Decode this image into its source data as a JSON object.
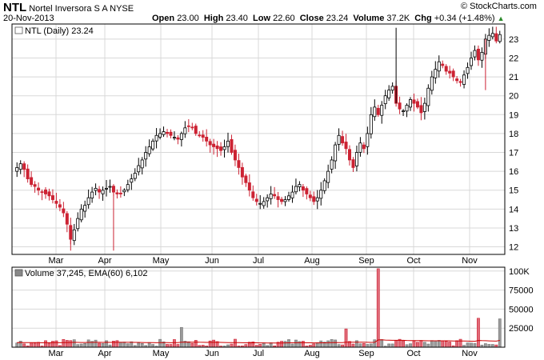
{
  "header": {
    "symbol": "NTL",
    "company": "Nortel Inversora S A",
    "exchange": "NYSE",
    "date": "20-Nov-2013",
    "open_label": "Open",
    "open": "23.00",
    "high_label": "High",
    "high": "23.40",
    "low_label": "Low",
    "low": "22.60",
    "close_label": "Close",
    "close": "23.24",
    "volume_label": "Volume",
    "volume": "37.2K",
    "chg_label": "Chg",
    "chg": "+0.34 (+1.48%)",
    "chg_icon": "up-triangle-icon",
    "watermark": "© StockCharts.com"
  },
  "colors": {
    "up": "#000000",
    "down": "#cc2233",
    "volume_up": "#7a7a7a",
    "volume_down": "#cc2233",
    "ema": "#cc0000",
    "grid": "#d8d8d8"
  },
  "chart_data": [
    {
      "type": "candlestick",
      "legend": "NTL (Daily) 23.24",
      "legend_placement": "top-left",
      "y_axis_side": "right",
      "ylim": [
        11.6,
        23.8
      ],
      "y_ticks": [
        "12",
        "13",
        "14",
        "15",
        "16",
        "17",
        "18",
        "19",
        "20",
        "21",
        "22",
        "23"
      ],
      "x_ticks": [
        "Mar",
        "Apr",
        "May",
        "Jun",
        "Jul",
        "Aug",
        "Sep",
        "Oct",
        "Nov"
      ],
      "grid": true,
      "close_series": [
        16.2,
        16.4,
        16.1,
        15.6,
        15.3,
        15.2,
        15.0,
        14.9,
        14.8,
        14.7,
        14.5,
        14.3,
        14.1,
        13.8,
        13.2,
        12.4,
        12.9,
        13.5,
        14.0,
        14.2,
        14.6,
        14.9,
        15.1,
        14.9,
        15.0,
        15.1,
        15.2,
        14.9,
        14.8,
        14.8,
        15.0,
        15.3,
        15.6,
        15.9,
        16.3,
        16.6,
        17.0,
        17.3,
        17.6,
        17.9,
        18.0,
        18.1,
        18.0,
        17.9,
        17.8,
        17.7,
        18.0,
        18.3,
        18.4,
        18.3,
        18.0,
        17.9,
        17.8,
        17.6,
        17.4,
        17.3,
        17.2,
        17.1,
        17.3,
        17.6,
        17.0,
        16.6,
        16.2,
        15.7,
        15.4,
        15.0,
        14.6,
        14.4,
        14.3,
        14.4,
        14.6,
        14.8,
        14.7,
        14.5,
        14.4,
        14.5,
        14.7,
        14.9,
        15.2,
        15.3,
        15.0,
        14.8,
        14.6,
        14.4,
        14.6,
        15.0,
        15.5,
        16.0,
        16.6,
        17.4,
        17.9,
        17.5,
        17.2,
        16.6,
        16.2,
        17.0,
        17.5,
        17.2,
        18.0,
        19.0,
        19.4,
        19.0,
        19.5,
        20.0,
        20.3,
        20.5,
        19.6,
        19.3,
        19.2,
        19.5,
        19.8,
        19.6,
        19.4,
        19.1,
        19.6,
        20.4,
        21.0,
        21.4,
        21.8,
        21.6,
        21.3,
        21.2,
        21.0,
        20.8,
        20.7,
        21.1,
        21.5,
        22.0,
        22.4,
        21.9,
        22.3,
        23.0,
        23.2,
        23.3,
        22.9,
        23.24
      ],
      "price_spikes": [
        {
          "x": "Feb",
          "low": 11.8
        },
        {
          "x": "Apr",
          "low": 11.8
        },
        {
          "x": "Sep",
          "high": 23.6
        },
        {
          "x": "Nov",
          "low": 20.3
        }
      ]
    },
    {
      "type": "bar",
      "legend": "Volume 37,245, EMA(60) 6,102",
      "legend_placement": "top-left",
      "y_axis_side": "right",
      "ylim": [
        0,
        105000
      ],
      "y_ticks": [
        "25000",
        "50000",
        "75000",
        "100K"
      ],
      "x_ticks": [
        "Mar",
        "Apr",
        "May",
        "Jun",
        "Jul",
        "Aug",
        "Sep",
        "Oct",
        "Nov"
      ],
      "ema60": 6102,
      "volume_spikes": [
        {
          "x": "Feb",
          "value": 9000
        },
        {
          "x": "Apr",
          "value": 8000
        },
        {
          "x": "May",
          "value": 26000
        },
        {
          "x": "Aug",
          "value": 24000
        },
        {
          "x": "Sep",
          "value": 103000
        },
        {
          "x": "Nov",
          "value": 38000
        },
        {
          "x": "Nov-last",
          "value": 37245
        }
      ]
    }
  ]
}
